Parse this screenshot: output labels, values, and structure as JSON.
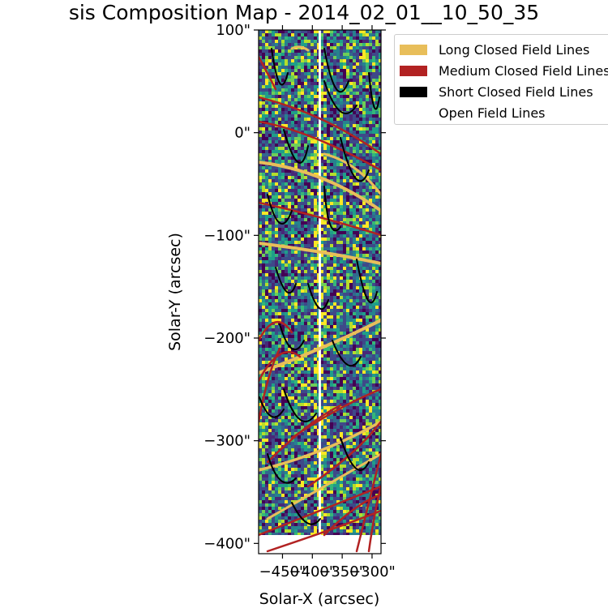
{
  "chart_data": {
    "type": "heatmap",
    "title": "sis Composition Map - 2014_02_01__10_50_35",
    "xlabel": "Solar-X (arcsec)",
    "ylabel": "Solar-Y (arcsec)",
    "xlim": [
      -490,
      -285
    ],
    "ylim": [
      -410,
      100
    ],
    "x_ticks": [
      -450,
      -400,
      -350,
      -300
    ],
    "x_tick_labels": [
      "−450\"",
      "−400\"",
      "−350\"",
      "−300\""
    ],
    "y_ticks": [
      100,
      0,
      -100,
      -200,
      -300,
      -400
    ],
    "y_tick_labels": [
      "100\"",
      "0\"",
      "−100\"",
      "−200\"",
      "−300\"",
      "−400\""
    ],
    "legend": {
      "position": "upper-right outside",
      "entries": [
        {
          "label": "Long Closed Field Lines",
          "color": "#e8be5a"
        },
        {
          "label": "Medium Closed Field Lines",
          "color": "#b22222"
        },
        {
          "label": "Short Closed Field Lines",
          "color": "#000000"
        },
        {
          "label": "Open Field Lines",
          "color": "#ffffff"
        }
      ]
    },
    "colormap": "viridis"
  }
}
